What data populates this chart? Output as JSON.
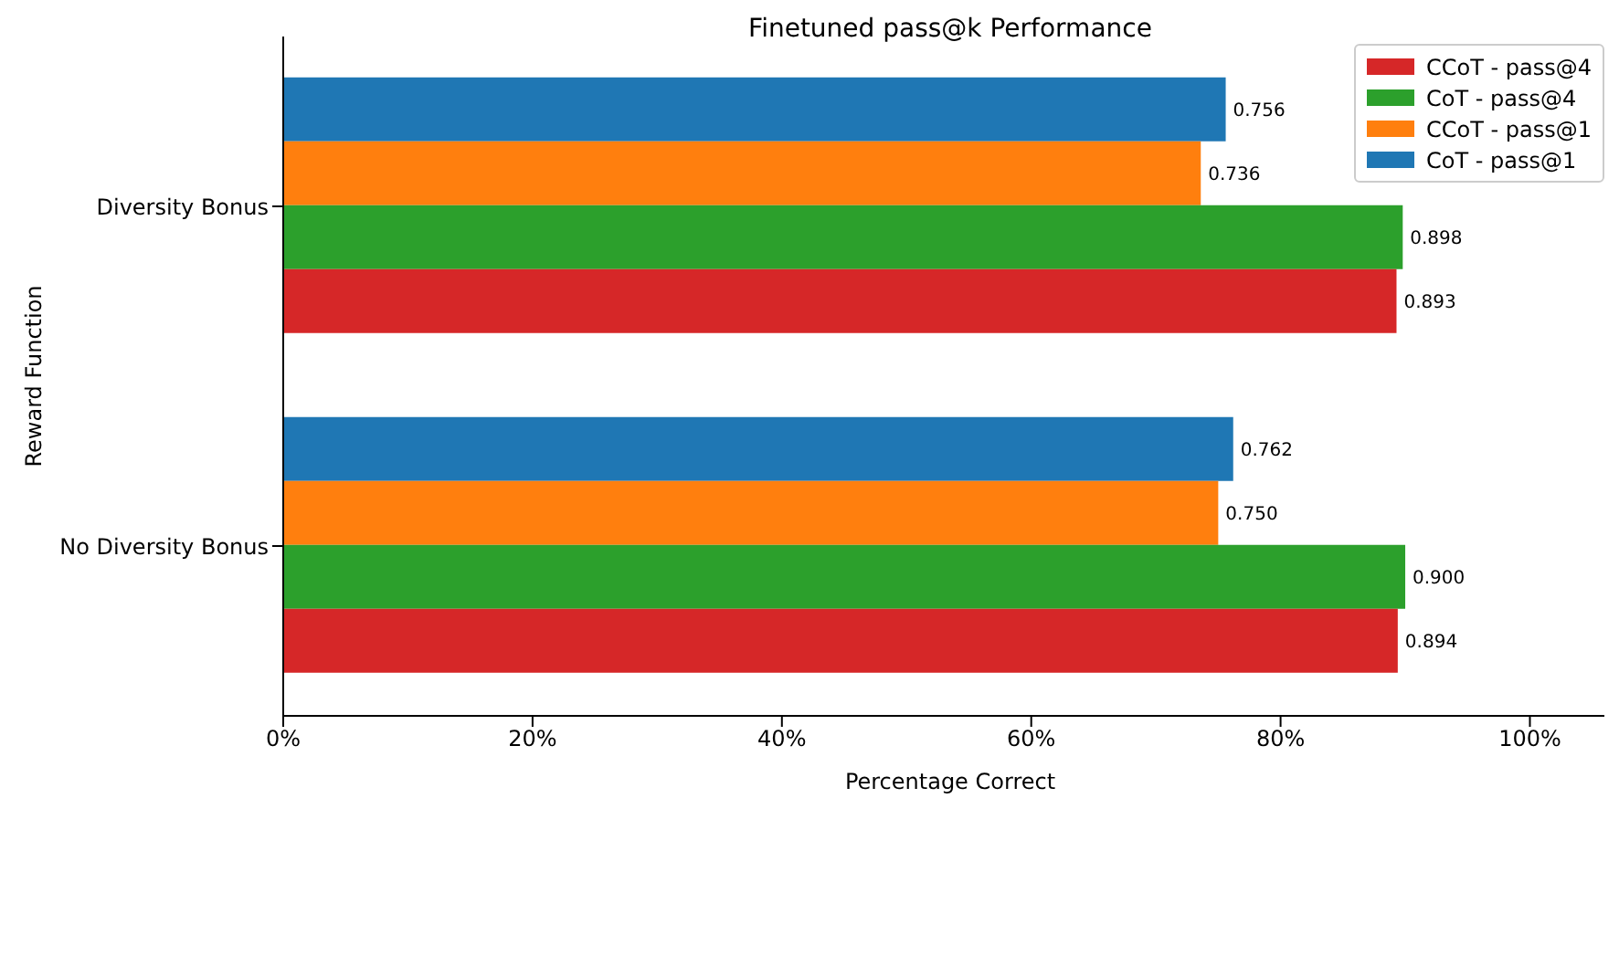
{
  "chart_data": {
    "type": "bar",
    "orientation": "horizontal",
    "title": "Finetuned pass@k Performance",
    "xlabel": "Percentage Correct",
    "ylabel": "Reward Function",
    "categories": [
      "Diversity Bonus",
      "No Diversity Bonus"
    ],
    "series": [
      {
        "name": "CCoT - pass@4",
        "color": "#d62728",
        "values": [
          0.893,
          0.894
        ],
        "value_labels": [
          "0.893",
          "0.894"
        ]
      },
      {
        "name": "CoT - pass@4",
        "color": "#2ca02c",
        "values": [
          0.898,
          0.9
        ],
        "value_labels": [
          "0.898",
          "0.900"
        ]
      },
      {
        "name": "CCoT - pass@1",
        "color": "#ff7f0e",
        "values": [
          0.736,
          0.75
        ],
        "value_labels": [
          "0.736",
          "0.750"
        ]
      },
      {
        "name": "CoT - pass@1",
        "color": "#1f77b4",
        "values": [
          0.756,
          0.762
        ],
        "value_labels": [
          "0.756",
          "0.762"
        ]
      }
    ],
    "xlim": [
      0,
      1.07
    ],
    "xticks": [
      {
        "value": 0,
        "label": "0%"
      },
      {
        "value": 0.2,
        "label": "20%"
      },
      {
        "value": 0.4,
        "label": "40%"
      },
      {
        "value": 0.6,
        "label": "60%"
      },
      {
        "value": 0.8,
        "label": "80%"
      },
      {
        "value": 1,
        "label": "100%"
      }
    ],
    "grid": false,
    "legend": "top right"
  }
}
